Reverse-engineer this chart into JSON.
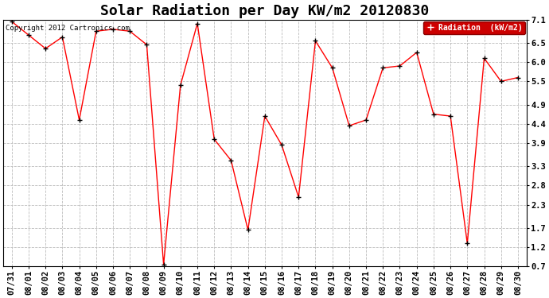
{
  "title": "Solar Radiation per Day KW/m2 20120830",
  "copyright_text": "Copyright 2012 Cartronics.com",
  "legend_label": "Radiation  (kW/m2)",
  "dates": [
    "07/31",
    "08/01",
    "08/02",
    "08/03",
    "08/04",
    "08/05",
    "08/06",
    "08/07",
    "08/08",
    "08/09",
    "08/10",
    "08/11",
    "08/12",
    "08/13",
    "08/14",
    "08/15",
    "08/16",
    "08/17",
    "08/18",
    "08/19",
    "08/20",
    "08/21",
    "08/22",
    "08/23",
    "08/24",
    "08/25",
    "08/26",
    "08/27",
    "08/28",
    "08/29",
    "08/30"
  ],
  "values": [
    7.05,
    6.7,
    6.35,
    6.65,
    4.5,
    6.8,
    6.85,
    6.8,
    6.45,
    0.75,
    5.4,
    7.0,
    4.0,
    3.45,
    1.65,
    4.6,
    3.85,
    2.5,
    6.55,
    5.85,
    4.35,
    4.5,
    5.85,
    5.9,
    6.25,
    4.65,
    4.6,
    1.3,
    6.1,
    5.5,
    5.6
  ],
  "line_color": "#ff0000",
  "marker_color": "#000000",
  "background_color": "#ffffff",
  "plot_bg_color": "#ffffff",
  "grid_color": "#bbbbbb",
  "ylim": [
    0.7,
    7.1
  ],
  "yticks": [
    0.7,
    1.2,
    1.7,
    2.3,
    2.8,
    3.3,
    3.9,
    4.4,
    4.9,
    5.5,
    6.0,
    6.5,
    7.1
  ],
  "title_fontsize": 13,
  "tick_fontsize": 7.5,
  "legend_bg": "#cc0000",
  "legend_text_color": "#ffffff"
}
